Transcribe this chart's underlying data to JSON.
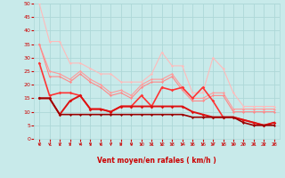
{
  "xlabel": "Vent moyen/en rafales ( km/h )",
  "xlim": [
    -0.5,
    23.5
  ],
  "ylim": [
    0,
    50
  ],
  "yticks": [
    0,
    5,
    10,
    15,
    20,
    25,
    30,
    35,
    40,
    45,
    50
  ],
  "xticks": [
    0,
    1,
    2,
    3,
    4,
    5,
    6,
    7,
    8,
    9,
    10,
    11,
    12,
    13,
    14,
    15,
    16,
    17,
    18,
    19,
    20,
    21,
    22,
    23
  ],
  "background_color": "#c8eaea",
  "grid_color": "#add8d8",
  "series": [
    {
      "x": [
        0,
        1,
        2,
        3,
        4,
        5,
        6,
        7,
        8,
        9,
        10,
        11,
        12,
        13,
        14,
        15,
        16,
        17,
        18,
        19,
        20,
        21,
        22,
        23
      ],
      "y": [
        50,
        36,
        36,
        28,
        28,
        26,
        24,
        24,
        21,
        21,
        21,
        24,
        32,
        27,
        27,
        17,
        17,
        30,
        26,
        17,
        12,
        12,
        12,
        12
      ],
      "color": "#ffbbbb",
      "linewidth": 0.8,
      "marker": "D",
      "markersize": 1.5
    },
    {
      "x": [
        0,
        1,
        2,
        3,
        4,
        5,
        6,
        7,
        8,
        9,
        10,
        11,
        12,
        13,
        14,
        15,
        16,
        17,
        18,
        19,
        20,
        21,
        22,
        23
      ],
      "y": [
        35,
        25,
        24,
        22,
        25,
        22,
        20,
        17,
        18,
        16,
        20,
        22,
        22,
        24,
        19,
        15,
        15,
        17,
        17,
        11,
        11,
        11,
        11,
        11
      ],
      "color": "#ff9999",
      "linewidth": 0.8,
      "marker": "D",
      "markersize": 1.5
    },
    {
      "x": [
        0,
        1,
        2,
        3,
        4,
        5,
        6,
        7,
        8,
        9,
        10,
        11,
        12,
        13,
        14,
        15,
        16,
        17,
        18,
        19,
        20,
        21,
        22,
        23
      ],
      "y": [
        35,
        23,
        23,
        21,
        24,
        21,
        19,
        16,
        17,
        15,
        19,
        21,
        21,
        23,
        18,
        14,
        14,
        16,
        16,
        10,
        10,
        10,
        10,
        10
      ],
      "color": "#ff8888",
      "linewidth": 0.8,
      "marker": "D",
      "markersize": 1.5
    },
    {
      "x": [
        0,
        1,
        2,
        3,
        4,
        5,
        6,
        7,
        8,
        9,
        10,
        11,
        12,
        13,
        14,
        15,
        16,
        17,
        18,
        19,
        20,
        21,
        22,
        23
      ],
      "y": [
        28,
        16,
        17,
        17,
        16,
        11,
        11,
        10,
        12,
        12,
        16,
        12,
        19,
        18,
        19,
        15,
        19,
        14,
        8,
        8,
        7,
        6,
        5,
        6
      ],
      "color": "#ff3333",
      "linewidth": 1.2,
      "marker": "D",
      "markersize": 1.8
    },
    {
      "x": [
        0,
        1,
        2,
        3,
        4,
        5,
        6,
        7,
        8,
        9,
        10,
        11,
        12,
        13,
        14,
        15,
        16,
        17,
        18,
        19,
        20,
        21,
        22,
        23
      ],
      "y": [
        15,
        15,
        9,
        14,
        16,
        11,
        11,
        10,
        12,
        12,
        12,
        12,
        12,
        12,
        12,
        10,
        9,
        8,
        8,
        8,
        7,
        6,
        5,
        6
      ],
      "color": "#dd1111",
      "linewidth": 1.4,
      "marker": "D",
      "markersize": 1.8
    },
    {
      "x": [
        0,
        1,
        2,
        3,
        4,
        5,
        6,
        7,
        8,
        9,
        10,
        11,
        12,
        13,
        14,
        15,
        16,
        17,
        18,
        19,
        20,
        21,
        22,
        23
      ],
      "y": [
        15,
        15,
        9,
        9,
        9,
        9,
        9,
        9,
        9,
        9,
        9,
        9,
        9,
        9,
        9,
        8,
        8,
        8,
        8,
        8,
        6,
        5,
        5,
        5
      ],
      "color": "#990000",
      "linewidth": 1.2,
      "marker": "D",
      "markersize": 1.5
    }
  ],
  "tick_color": "#cc0000",
  "label_color": "#cc0000",
  "arrow_color": "#cc0000"
}
